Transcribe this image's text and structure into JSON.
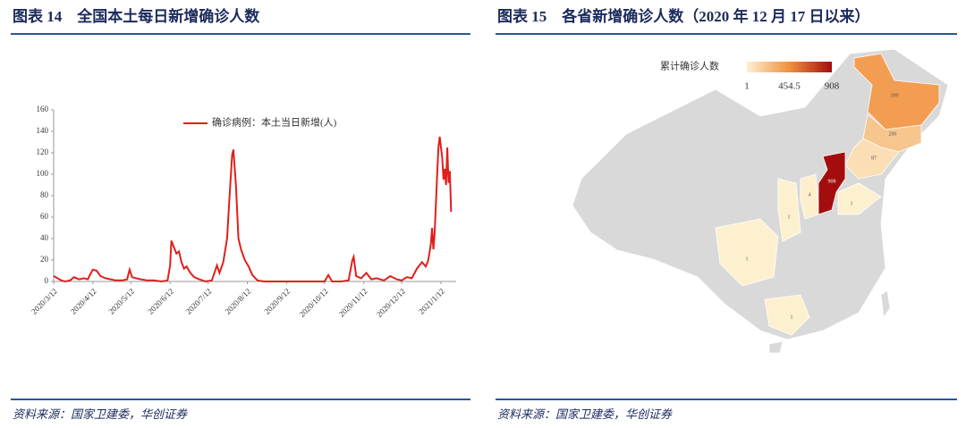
{
  "chart_data": [
    {
      "type": "line",
      "title": "图表 14　全国本土每日新增确诊人数",
      "x": [
        "2020/3/12",
        "2020/3/15",
        "2020/3/18",
        "2020/3/21",
        "2020/3/25",
        "2020/3/28",
        "2020/4/1",
        "2020/4/5",
        "2020/4/8",
        "2020/4/10",
        "2020/4/12",
        "2020/4/15",
        "2020/4/18",
        "2020/4/22",
        "2020/4/26",
        "2020/4/30",
        "2020/5/5",
        "2020/5/9",
        "2020/5/11",
        "2020/5/13",
        "2020/5/16",
        "2020/5/20",
        "2020/5/25",
        "2020/5/30",
        "2020/6/5",
        "2020/6/10",
        "2020/6/12",
        "2020/6/13",
        "2020/6/15",
        "2020/6/17",
        "2020/6/19",
        "2020/6/21",
        "2020/6/23",
        "2020/6/25",
        "2020/6/28",
        "2020/7/1",
        "2020/7/5",
        "2020/7/10",
        "2020/7/15",
        "2020/7/19",
        "2020/7/21",
        "2020/7/24",
        "2020/7/27",
        "2020/7/29",
        "2020/7/31",
        "2020/8/1",
        "2020/8/3",
        "2020/8/5",
        "2020/8/7",
        "2020/8/10",
        "2020/8/13",
        "2020/8/16",
        "2020/8/20",
        "2020/8/25",
        "2020/9/5",
        "2020/9/20",
        "2020/10/1",
        "2020/10/12",
        "2020/10/15",
        "2020/10/18",
        "2020/10/25",
        "2020/10/31",
        "2020/11/3",
        "2020/11/4",
        "2020/11/6",
        "2020/11/10",
        "2020/11/14",
        "2020/11/18",
        "2020/11/22",
        "2020/11/28",
        "2020/12/3",
        "2020/12/8",
        "2020/12/12",
        "2020/12/16",
        "2020/12/20",
        "2020/12/24",
        "2020/12/28",
        "2020/12/31",
        "2021/1/2",
        "2021/1/4",
        "2021/1/5",
        "2021/1/6",
        "2021/1/7",
        "2021/1/9",
        "2021/1/10",
        "2021/1/11",
        "2021/1/13",
        "2021/1/14",
        "2021/1/15",
        "2021/1/16",
        "2021/1/17",
        "2021/1/18",
        "2021/1/19",
        "2021/1/20"
      ],
      "series": [
        {
          "name": "确诊病例：本土当日新增(人)",
          "color": "#e0201b",
          "values": [
            5,
            3,
            1,
            0,
            1,
            4,
            2,
            3,
            2,
            7,
            11,
            10,
            5,
            3,
            2,
            1,
            1,
            2,
            11,
            4,
            3,
            2,
            1,
            1,
            0,
            1,
            15,
            38,
            32,
            26,
            28,
            18,
            12,
            14,
            8,
            4,
            2,
            0,
            1,
            15,
            8,
            18,
            40,
            80,
            118,
            123,
            90,
            40,
            30,
            20,
            14,
            6,
            1,
            0,
            0,
            0,
            0,
            0,
            6,
            0,
            0,
            1,
            20,
            23,
            5,
            3,
            8,
            2,
            3,
            1,
            5,
            2,
            1,
            4,
            3,
            12,
            18,
            14,
            20,
            35,
            50,
            30,
            45,
            100,
            125,
            135,
            115,
            95,
            105,
            90,
            125,
            92,
            103,
            65
          ]
        }
      ],
      "xlim": [
        "2020/3/12",
        "2021/1/24"
      ],
      "xticks": [
        "2020/3/12",
        "2020/4/12",
        "2020/5/12",
        "2020/6/12",
        "2020/7/12",
        "2020/8/12",
        "2020/9/12",
        "2020/10/12",
        "2020/11/12",
        "2020/12/12",
        "2021/1/12"
      ],
      "ylim": [
        0,
        160
      ],
      "yticks": [
        0,
        20,
        40,
        60,
        80,
        100,
        120,
        140,
        160
      ],
      "legend": "top",
      "source": "资料来源：国家卫建委，华创证券"
    },
    {
      "type": "map",
      "title": "图表 15　各省新增确诊人数（2020 年 12 月 17 日以来）",
      "legend_title": "累计确诊人数",
      "clim": [
        1,
        908
      ],
      "ticks": [
        1,
        454.5,
        908
      ],
      "colors": [
        "#fdf0cf",
        "#f0913f",
        "#a30d0d"
      ],
      "values": [
        399,
        206,
        87,
        908,
        4,
        1,
        1,
        1,
        1
      ],
      "source": "资料来源：国家卫建委，华创证券"
    }
  ]
}
